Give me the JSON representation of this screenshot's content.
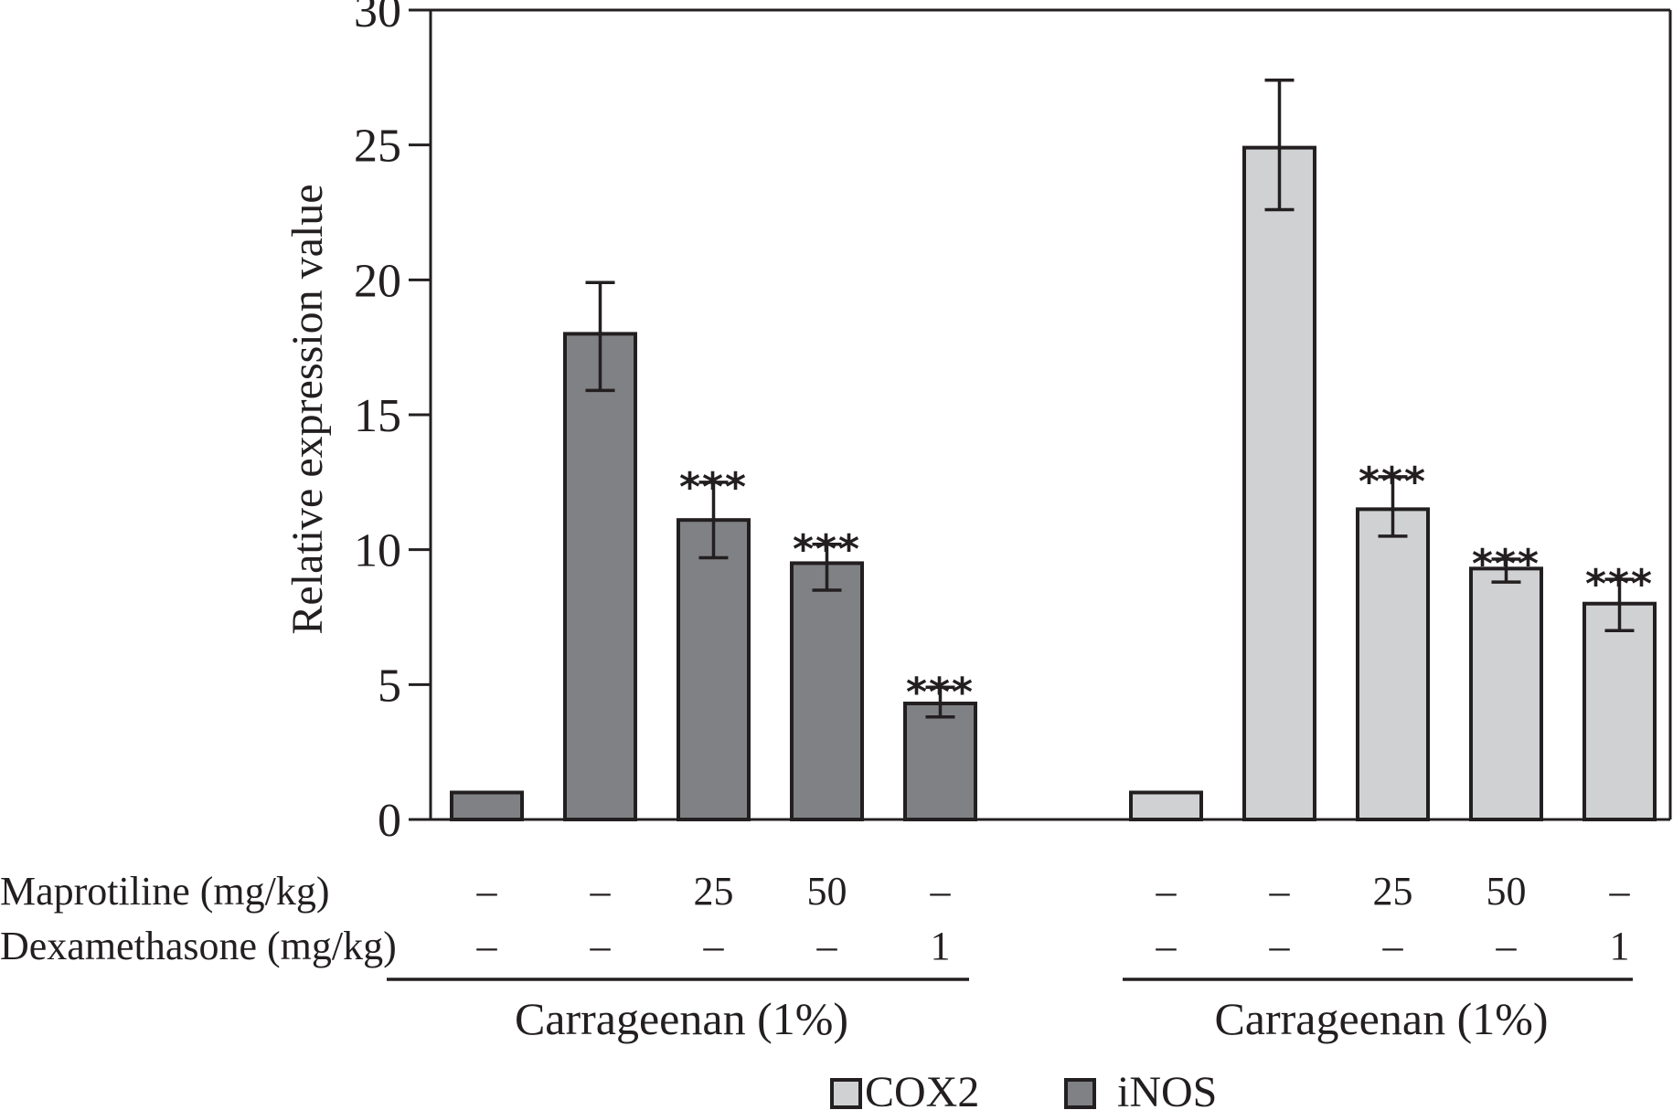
{
  "chart_data": {
    "type": "bar",
    "title": "",
    "xlabel": "",
    "ylabel": "Relative expression value",
    "ylim": [
      0,
      30
    ],
    "yticks": [
      0,
      5,
      10,
      15,
      20,
      25,
      30
    ],
    "grid": false,
    "legend_position": "bottom-center",
    "legend": [
      {
        "name": "COX2",
        "color": "#d0d1d3"
      },
      {
        "name": "iNOS",
        "color": "#808184"
      }
    ],
    "groups": [
      {
        "series": "iNOS",
        "color": "#808184",
        "group_label": "Carrageenan (1%)",
        "bars": [
          {
            "value": 1.0,
            "err_low": 1.0,
            "err_high": 1.0,
            "sig": "",
            "maprotiline": "–",
            "dexamethasone": "–"
          },
          {
            "value": 18.0,
            "err_low": 15.9,
            "err_high": 19.9,
            "sig": "",
            "maprotiline": "–",
            "dexamethasone": "–"
          },
          {
            "value": 11.1,
            "err_low": 9.7,
            "err_high": 12.5,
            "sig": "***",
            "maprotiline": "25",
            "dexamethasone": "–"
          },
          {
            "value": 9.5,
            "err_low": 8.5,
            "err_high": 10.2,
            "sig": "***",
            "maprotiline": "50",
            "dexamethasone": "–"
          },
          {
            "value": 4.3,
            "err_low": 3.8,
            "err_high": 4.9,
            "sig": "***",
            "maprotiline": "–",
            "dexamethasone": "1"
          }
        ]
      },
      {
        "series": "COX2",
        "color": "#d0d1d3",
        "group_label": "Carrageenan (1%)",
        "bars": [
          {
            "value": 1.0,
            "err_low": 1.0,
            "err_high": 1.0,
            "sig": "",
            "maprotiline": "–",
            "dexamethasone": "–"
          },
          {
            "value": 24.9,
            "err_low": 22.6,
            "err_high": 27.4,
            "sig": "",
            "maprotiline": "–",
            "dexamethasone": "–"
          },
          {
            "value": 11.5,
            "err_low": 10.5,
            "err_high": 12.7,
            "sig": "***",
            "maprotiline": "25",
            "dexamethasone": "–"
          },
          {
            "value": 9.3,
            "err_low": 8.8,
            "err_high": 9.65,
            "sig": "***",
            "maprotiline": "50",
            "dexamethasone": "–"
          },
          {
            "value": 8.0,
            "err_low": 7.0,
            "err_high": 8.9,
            "sig": "***",
            "maprotiline": "–",
            "dexamethasone": "1"
          }
        ]
      }
    ],
    "row_labels": {
      "maprotiline": "Maprotiline (mg/kg)",
      "dexamethasone": "Dexamethasone (mg/kg)"
    }
  }
}
